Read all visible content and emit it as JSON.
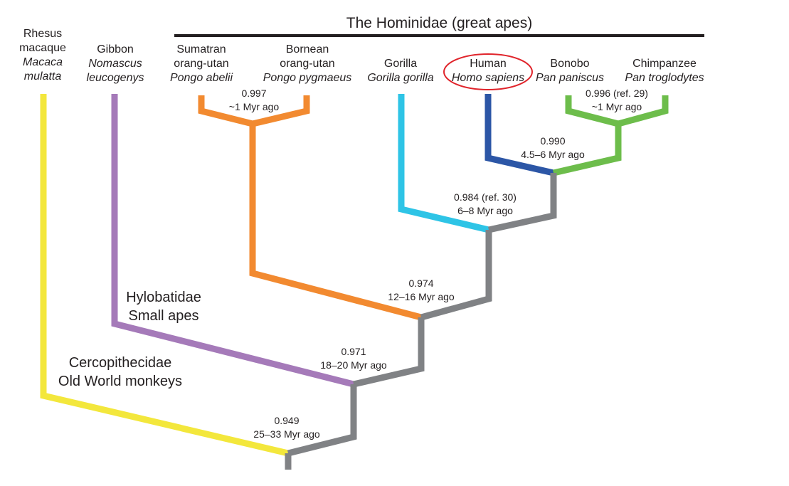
{
  "title": "The Hominidae (great apes)",
  "colors": {
    "macaque": "#f3e73c",
    "gibbon": "#a57ab9",
    "orangutan": "#f28a30",
    "gorilla": "#2ec4e6",
    "human": "#2c56a6",
    "pan": "#6dbd4b",
    "ancestral": "#808285",
    "highlight_ellipse": "#e0242b"
  },
  "species": [
    {
      "common": [
        "Rhesus",
        "macaque"
      ],
      "latin": [
        "Macaca",
        "mulatta"
      ]
    },
    {
      "common": [
        "Gibbon"
      ],
      "latin": [
        "Nomascus",
        "leucogenys"
      ]
    },
    {
      "common": [
        "Sumatran",
        "orang-utan"
      ],
      "latin": [
        "Pongo abelii"
      ]
    },
    {
      "common": [
        "Bornean",
        "orang-utan"
      ],
      "latin": [
        "Pongo pygmaeus"
      ]
    },
    {
      "common": [
        "Gorilla"
      ],
      "latin": [
        "Gorilla gorilla"
      ]
    },
    {
      "common": [
        "Human"
      ],
      "latin": [
        "Homo sapiens"
      ],
      "highlighted": true
    },
    {
      "common": [
        "Bonobo"
      ],
      "latin": [
        "Pan paniscus"
      ]
    },
    {
      "common": [
        "Chimpanzee"
      ],
      "latin": [
        "Pan troglodytes"
      ]
    }
  ],
  "nodes": [
    {
      "value": "0.997",
      "time": "~1 Myr ago"
    },
    {
      "value": "0.996 (ref. 29)",
      "time": "~1 Myr ago"
    },
    {
      "value": "0.990",
      "time": "4.5–6 Myr ago"
    },
    {
      "value": "0.984 (ref. 30)",
      "time": "6–8 Myr ago"
    },
    {
      "value": "0.974",
      "time": "12–16 Myr ago"
    },
    {
      "value": "0.971",
      "time": "18–20 Myr ago"
    },
    {
      "value": "0.949",
      "time": "25–33 Myr ago"
    }
  ],
  "families": [
    {
      "lines": [
        "Hylobatidae",
        "Small apes"
      ]
    },
    {
      "lines": [
        "Cercopithecidae",
        "Old World monkeys"
      ]
    }
  ]
}
